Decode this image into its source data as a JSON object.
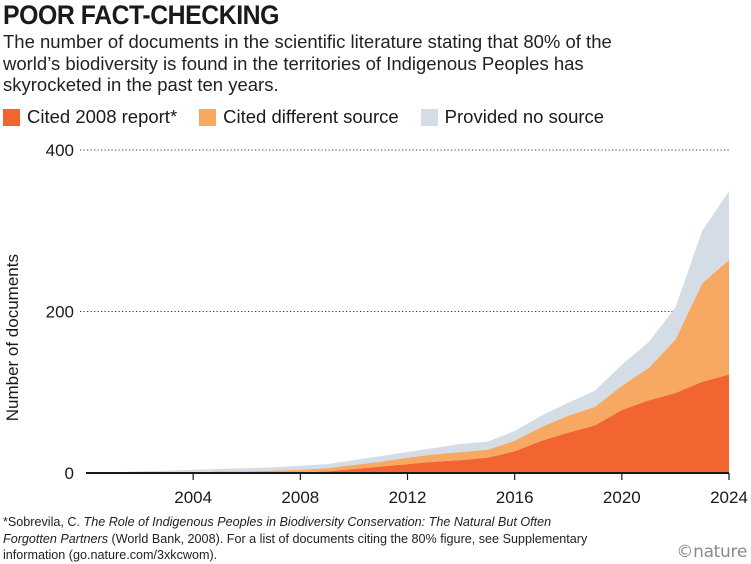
{
  "header": {
    "title": "POOR FACT-CHECKING",
    "subtitle": "The number of documents in the scientific literature stating that 80% of the world’s biodiversity is found in the territories of Indigenous Peoples has skyrocketed in the past ten years."
  },
  "footnote": {
    "prefix": "*Sobrevila, C. ",
    "italic": "The Role of Indigenous Peoples in Biodiversity Conservation: The Natural But Often Forgotten Partners",
    "suffix": " (World Bank, 2008). For a list of documents citing the 80% figure, see Supplementary information (go.nature.com/3xkcwom)."
  },
  "brand": "©nature",
  "colors": {
    "cited_2008": "#f26430",
    "cited_other": "#f7a862",
    "no_source": "#d4dde6",
    "text": "#1a1a1a"
  },
  "chart_data": {
    "type": "area",
    "stacked": true,
    "ylabel": "Number of documents",
    "ylim": [
      0,
      400
    ],
    "xlim": [
      2000,
      2024
    ],
    "y_ticks": [
      0,
      200,
      400
    ],
    "x_ticks": [
      2004,
      2008,
      2012,
      2016,
      2020,
      2024
    ],
    "grid": "horizontal-dotted",
    "legend_placement": "top",
    "x": [
      2000,
      2001,
      2002,
      2003,
      2004,
      2005,
      2006,
      2007,
      2008,
      2009,
      2010,
      2011,
      2012,
      2013,
      2014,
      2015,
      2016,
      2017,
      2018,
      2019,
      2020,
      2021,
      2022,
      2023,
      2024
    ],
    "series": [
      {
        "name": "Cited 2008 report*",
        "color": "#f26430",
        "values": [
          0,
          0,
          0,
          0,
          0,
          0,
          0,
          0,
          1,
          2,
          5,
          8,
          11,
          14,
          16,
          19,
          27,
          40,
          50,
          59,
          78,
          90,
          99,
          113,
          122
        ]
      },
      {
        "name": "Cited different source",
        "color": "#f7a862",
        "values": [
          0,
          0,
          1,
          1,
          1,
          2,
          2,
          3,
          3,
          4,
          5,
          6,
          8,
          9,
          10,
          10,
          13,
          17,
          21,
          23,
          30,
          40,
          66,
          122,
          142
        ]
      },
      {
        "name": "Provided no source",
        "color": "#d4dde6",
        "values": [
          0,
          1,
          1,
          2,
          3,
          3,
          4,
          4,
          5,
          5,
          6,
          7,
          7,
          8,
          10,
          10,
          12,
          14,
          16,
          20,
          26,
          32,
          40,
          65,
          85
        ]
      }
    ]
  }
}
